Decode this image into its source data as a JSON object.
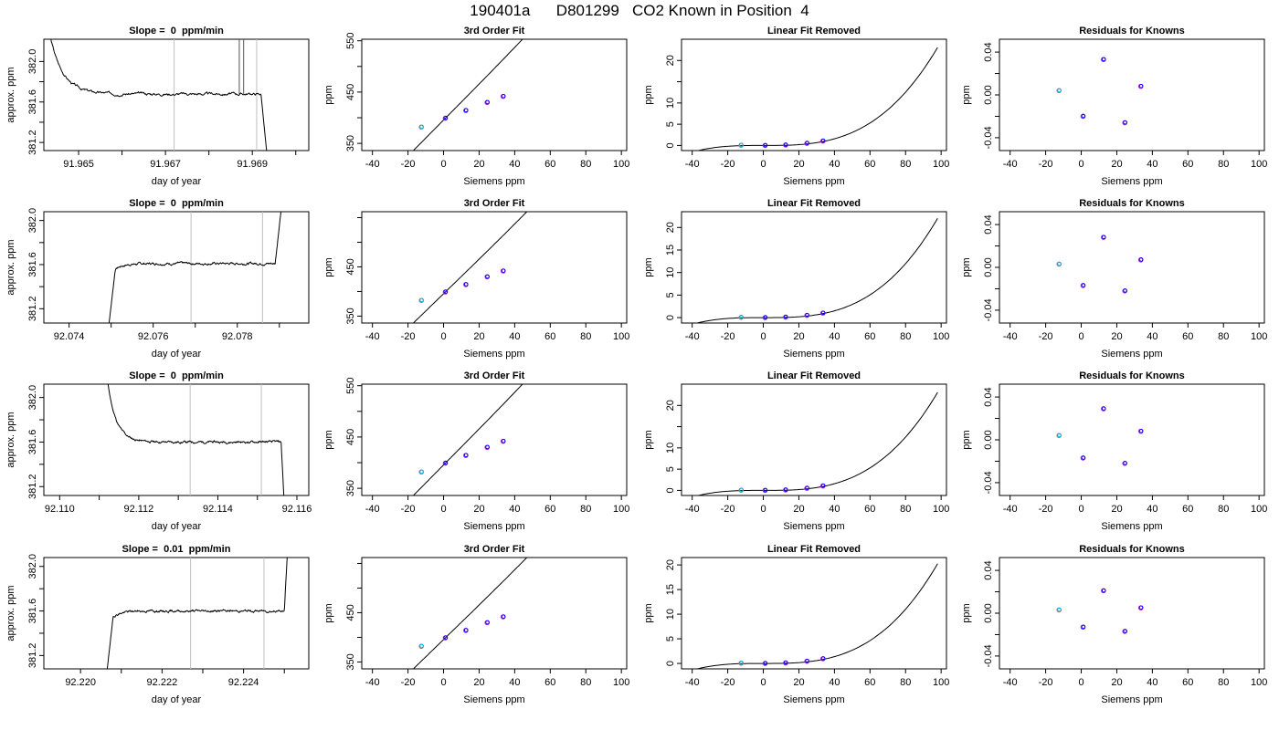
{
  "title": "190401a      D801299   CO2 Known in Position  4",
  "colors": {
    "trace": "#000000",
    "marker_line": "#bfbfbf",
    "spike": "#555555",
    "point": "#0000ff",
    "point_alt": "#a020f0",
    "point_first": "#00b0f0",
    "point_first_alt": "#888888"
  },
  "chart_data": [
    {
      "type": "line",
      "row": 0,
      "col": 0,
      "title": "Slope =  0  ppm/min",
      "xlabel": "day of year",
      "ylabel": "approx. ppm",
      "xlim": [
        91.9642,
        91.9703
      ],
      "ylim": [
        381.12,
        382.22
      ],
      "xticks": [
        91.965,
        91.967,
        91.969
      ],
      "xtick_labels": [
        "91.965",
        "91.967",
        "91.969"
      ],
      "xminor": [
        91.966,
        91.968,
        91.97
      ],
      "yticks": [
        381.2,
        381.6,
        382.0
      ],
      "ytick_labels": [
        "381.2",
        "381.6",
        "382.0"
      ],
      "yminor": [
        381.4,
        381.8
      ],
      "markers": [
        91.9672,
        91.9691
      ],
      "spikes": [
        91.9687,
        91.9688
      ],
      "trace": {
        "start": 91.9642,
        "end": 91.9694,
        "level": 381.68,
        "noise": 0.01,
        "seed": 3,
        "left": {
          "type": "decay",
          "from": 382.6,
          "t1": 91.9655,
          "tau": 0.0003
        },
        "right": {
          "type": "drop",
          "to": 380.8,
          "t1": 91.9692,
          "t2": 91.9694
        }
      }
    },
    {
      "type": "line",
      "row": 0,
      "col": 1,
      "title": "3rd Order Fit",
      "xlabel": "Siemens ppm",
      "ylabel": "ppm",
      "xlim": [
        -46,
        103
      ],
      "ylim": [
        336,
        553
      ],
      "xticks": [
        -40,
        -20,
        0,
        20,
        40,
        60,
        80,
        100
      ],
      "xtick_labels": [
        "-40",
        "-20",
        "0",
        "20",
        "40",
        "60",
        "80",
        "100"
      ],
      "yticks": [
        350,
        450,
        550
      ],
      "ytick_labels": [
        "350",
        "450",
        "550"
      ],
      "yminor": [
        400,
        500
      ],
      "curve": {
        "x0": -43,
        "x1": 98,
        "a": 395.5,
        "b": 3.5,
        "c": 0.0,
        "d": 2.5e-05
      },
      "points": {
        "x": [
          -12.5,
          1.0,
          12.5,
          24.5,
          33.5
        ],
        "y": [
          381.8,
          399.0,
          414.0,
          429.8,
          441.6
        ]
      }
    },
    {
      "type": "line",
      "row": 0,
      "col": 2,
      "title": "Linear Fit Removed",
      "xlabel": "Siemens ppm",
      "ylabel": "ppm",
      "xlim": [
        -46,
        103
      ],
      "ylim": [
        -1.2,
        25.0
      ],
      "xticks": [
        -40,
        -20,
        0,
        20,
        40,
        60,
        80,
        100
      ],
      "xtick_labels": [
        "-40",
        "-20",
        "0",
        "20",
        "40",
        "60",
        "80",
        "100"
      ],
      "yticks": [
        0,
        5,
        10,
        20
      ],
      "ytick_labels": [
        "0",
        "5",
        "10",
        "20"
      ],
      "yminor": [
        15
      ],
      "curve": {
        "x0": -43,
        "x1": 98,
        "a": 0.0,
        "b": 0.0,
        "c": 0.0,
        "d": 2.45e-05
      },
      "points": {
        "x": [
          -12.5,
          1.0,
          12.5,
          24.5,
          33.5
        ],
        "y": [
          0.05,
          0.0,
          0.1,
          0.5,
          1.05
        ]
      }
    },
    {
      "type": "scatter",
      "row": 0,
      "col": 3,
      "title": "Residuals for Knowns",
      "xlabel": "Siemens ppm",
      "ylabel": "ppm",
      "xlim": [
        -46,
        103
      ],
      "ylim": [
        -0.052,
        0.052
      ],
      "xticks": [
        -40,
        -20,
        0,
        20,
        40,
        60,
        80,
        100
      ],
      "xtick_labels": [
        "-40",
        "-20",
        "0",
        "20",
        "40",
        "60",
        "80",
        "100"
      ],
      "yticks": [
        -0.04,
        0.0,
        0.04
      ],
      "ytick_labels": [
        "-0.04",
        "0.00",
        "0.04"
      ],
      "yminor": [
        -0.02,
        0.02
      ],
      "points": {
        "x": [
          -12.5,
          1.0,
          12.5,
          24.5,
          33.5
        ],
        "y": [
          0.004,
          -0.02,
          0.033,
          -0.026,
          0.008
        ]
      }
    },
    {
      "type": "line",
      "row": 1,
      "col": 0,
      "title": "Slope =  0  ppm/min",
      "xlabel": "day of year",
      "ylabel": "approx. ppm",
      "xlim": [
        92.0734,
        92.0797
      ],
      "ylim": [
        381.07,
        382.08
      ],
      "xticks": [
        92.074,
        92.076,
        92.078
      ],
      "xtick_labels": [
        "92.074",
        "92.076",
        "92.078"
      ],
      "xminor": [
        92.075,
        92.077,
        92.079
      ],
      "yticks": [
        381.2,
        381.6,
        382.0
      ],
      "ytick_labels": [
        "381.2",
        "381.6",
        "382.0"
      ],
      "yminor": [
        381.4,
        381.8
      ],
      "markers": [
        92.0769,
        92.0786
      ],
      "spikes": [],
      "trace": {
        "start": 92.0749,
        "end": 92.0791,
        "level": 381.61,
        "noise": 0.008,
        "seed": 7,
        "left": {
          "type": "rise",
          "from": 380.9,
          "t1": 92.0751,
          "tau": 0.0002
        },
        "right": {
          "type": "jump",
          "to": 382.3,
          "t1": 92.0789,
          "t2": 92.0791
        }
      }
    },
    {
      "type": "line",
      "row": 1,
      "col": 1,
      "title": "3rd Order Fit",
      "xlabel": "Siemens ppm",
      "ylabel": "ppm",
      "xlim": [
        -46,
        103
      ],
      "ylim": [
        336,
        562
      ],
      "xticks": [
        -40,
        -20,
        0,
        20,
        40,
        60,
        80,
        100
      ],
      "xtick_labels": [
        "-40",
        "-20",
        "0",
        "20",
        "40",
        "60",
        "80",
        "100"
      ],
      "yticks": [
        350,
        450
      ],
      "ytick_labels": [
        "350",
        "450"
      ],
      "yminor": [
        400,
        500,
        550
      ],
      "curve": {
        "x0": -43,
        "x1": 98,
        "a": 395.5,
        "b": 3.5,
        "c": 0.0,
        "d": 2.4e-05
      },
      "points": {
        "x": [
          -12.5,
          1.0,
          12.5,
          24.5,
          33.5
        ],
        "y": [
          381.8,
          399.0,
          414.0,
          429.8,
          441.6
        ]
      }
    },
    {
      "type": "line",
      "row": 1,
      "col": 2,
      "title": "Linear Fit Removed",
      "xlabel": "Siemens ppm",
      "ylabel": "ppm",
      "xlim": [
        -46,
        103
      ],
      "ylim": [
        -1.2,
        23.5
      ],
      "xticks": [
        -40,
        -20,
        0,
        20,
        40,
        60,
        80,
        100
      ],
      "xtick_labels": [
        "-40",
        "-20",
        "0",
        "20",
        "40",
        "60",
        "80",
        "100"
      ],
      "yticks": [
        0,
        5,
        10,
        15,
        20
      ],
      "ytick_labels": [
        "0",
        "5",
        "10",
        "15",
        "20"
      ],
      "yminor": [],
      "curve": {
        "x0": -43,
        "x1": 98,
        "a": 0.0,
        "b": 0.0,
        "c": 0.0,
        "d": 2.34e-05
      },
      "points": {
        "x": [
          -12.5,
          1.0,
          12.5,
          24.5,
          33.5
        ],
        "y": [
          0.05,
          0.0,
          0.1,
          0.5,
          1.0
        ]
      }
    },
    {
      "type": "scatter",
      "row": 1,
      "col": 3,
      "title": "Residuals for Knowns",
      "xlabel": "Siemens ppm",
      "ylabel": "ppm",
      "xlim": [
        -46,
        103
      ],
      "ylim": [
        -0.052,
        0.052
      ],
      "xticks": [
        -40,
        -20,
        0,
        20,
        40,
        60,
        80,
        100
      ],
      "xtick_labels": [
        "-40",
        "-20",
        "0",
        "20",
        "40",
        "60",
        "80",
        "100"
      ],
      "yticks": [
        -0.04,
        0.0,
        0.04
      ],
      "ytick_labels": [
        "-0.04",
        "0.00",
        "0.04"
      ],
      "yminor": [
        -0.02,
        0.02
      ],
      "points": {
        "x": [
          -12.5,
          1.0,
          12.5,
          24.5,
          33.5
        ],
        "y": [
          0.003,
          -0.017,
          0.028,
          -0.022,
          0.007
        ]
      }
    },
    {
      "type": "line",
      "row": 2,
      "col": 0,
      "title": "Slope =  0  ppm/min",
      "xlabel": "day of year",
      "ylabel": "approx. ppm",
      "xlim": [
        92.1096,
        92.1163
      ],
      "ylim": [
        381.12,
        382.12
      ],
      "xticks": [
        92.11,
        92.112,
        92.114,
        92.116
      ],
      "xtick_labels": [
        "92.110",
        "92.112",
        "92.114",
        "92.116"
      ],
      "xminor": [
        92.111,
        92.113,
        92.115
      ],
      "yticks": [
        381.2,
        381.6,
        382.0
      ],
      "ytick_labels": [
        "381.2",
        "381.6",
        "382.0"
      ],
      "yminor": [
        381.4,
        381.8
      ],
      "markers": [
        92.1133,
        92.1151
      ],
      "spikes": [],
      "trace": {
        "start": 92.1111,
        "end": 92.1157,
        "level": 381.6,
        "noise": 0.008,
        "seed": 11,
        "left": {
          "type": "decay",
          "from": 382.5,
          "t1": 92.1114,
          "tau": 0.00022
        },
        "right": {
          "type": "drop",
          "to": 380.9,
          "t1": 92.1156,
          "t2": 92.1157
        }
      }
    },
    {
      "type": "line",
      "row": 2,
      "col": 1,
      "title": "3rd Order Fit",
      "xlabel": "Siemens ppm",
      "ylabel": "ppm",
      "xlim": [
        -46,
        103
      ],
      "ylim": [
        336,
        553
      ],
      "xticks": [
        -40,
        -20,
        0,
        20,
        40,
        60,
        80,
        100
      ],
      "xtick_labels": [
        "-40",
        "-20",
        "0",
        "20",
        "40",
        "60",
        "80",
        "100"
      ],
      "yticks": [
        350,
        450,
        550
      ],
      "ytick_labels": [
        "350",
        "450",
        "550"
      ],
      "yminor": [
        400,
        500
      ],
      "curve": {
        "x0": -43,
        "x1": 98,
        "a": 395.5,
        "b": 3.5,
        "c": 0.0,
        "d": 2.5e-05
      },
      "points": {
        "x": [
          -12.5,
          1.0,
          12.5,
          24.5,
          33.5
        ],
        "y": [
          381.8,
          399.0,
          414.0,
          429.8,
          441.6
        ]
      }
    },
    {
      "type": "line",
      "row": 2,
      "col": 2,
      "title": "Linear Fit Removed",
      "xlabel": "Siemens ppm",
      "ylabel": "ppm",
      "xlim": [
        -46,
        103
      ],
      "ylim": [
        -1.2,
        25.0
      ],
      "xticks": [
        -40,
        -20,
        0,
        20,
        40,
        60,
        80,
        100
      ],
      "xtick_labels": [
        "-40",
        "-20",
        "0",
        "20",
        "40",
        "60",
        "80",
        "100"
      ],
      "yticks": [
        0,
        5,
        10,
        20
      ],
      "ytick_labels": [
        "0",
        "5",
        "10",
        "20"
      ],
      "yminor": [
        15
      ],
      "curve": {
        "x0": -43,
        "x1": 98,
        "a": 0.0,
        "b": 0.0,
        "c": 0.0,
        "d": 2.45e-05
      },
      "points": {
        "x": [
          -12.5,
          1.0,
          12.5,
          24.5,
          33.5
        ],
        "y": [
          0.05,
          0.0,
          0.1,
          0.5,
          1.05
        ]
      }
    },
    {
      "type": "scatter",
      "row": 2,
      "col": 3,
      "title": "Residuals for Knowns",
      "xlabel": "Siemens ppm",
      "ylabel": "ppm",
      "xlim": [
        -46,
        103
      ],
      "ylim": [
        -0.052,
        0.052
      ],
      "xticks": [
        -40,
        -20,
        0,
        20,
        40,
        60,
        80,
        100
      ],
      "xtick_labels": [
        "-40",
        "-20",
        "0",
        "20",
        "40",
        "60",
        "80",
        "100"
      ],
      "yticks": [
        -0.04,
        0.0,
        0.04
      ],
      "ytick_labels": [
        "-0.04",
        "0.00",
        "0.04"
      ],
      "yminor": [
        -0.02,
        0.02
      ],
      "points": {
        "x": [
          -12.5,
          1.0,
          12.5,
          24.5,
          33.5
        ],
        "y": [
          0.004,
          -0.017,
          0.029,
          -0.022,
          0.008
        ]
      }
    },
    {
      "type": "line",
      "row": 3,
      "col": 0,
      "title": "Slope =  0.01  ppm/min",
      "xlabel": "day of year",
      "ylabel": "approx. ppm",
      "xlim": [
        92.2191,
        92.2256
      ],
      "ylim": [
        381.08,
        382.08
      ],
      "xticks": [
        92.22,
        92.222,
        92.224
      ],
      "xtick_labels": [
        "92.220",
        "92.222",
        "92.224"
      ],
      "xminor": [
        92.221,
        92.223,
        92.225
      ],
      "yticks": [
        381.2,
        381.6,
        382.0
      ],
      "ytick_labels": [
        "381.2",
        "381.6",
        "382.0"
      ],
      "yminor": [
        381.4,
        381.8
      ],
      "markers": [
        92.2227,
        92.2245
      ],
      "spikes": [],
      "trace": {
        "start": 92.2206,
        "end": 92.2251,
        "level": 381.6,
        "noise": 0.008,
        "seed": 19,
        "left": {
          "type": "rise",
          "from": 380.9,
          "t1": 92.2208,
          "tau": 0.0002
        },
        "right": {
          "type": "jump",
          "to": 382.3,
          "t1": 92.225,
          "t2": 92.2251
        }
      }
    },
    {
      "type": "line",
      "row": 3,
      "col": 1,
      "title": "3rd Order Fit",
      "xlabel": "Siemens ppm",
      "ylabel": "ppm",
      "xlim": [
        -46,
        103
      ],
      "ylim": [
        336,
        562
      ],
      "xticks": [
        -40,
        -20,
        0,
        20,
        40,
        60,
        80,
        100
      ],
      "xtick_labels": [
        "-40",
        "-20",
        "0",
        "20",
        "40",
        "60",
        "80",
        "100"
      ],
      "yticks": [
        350,
        450
      ],
      "ytick_labels": [
        "350",
        "450"
      ],
      "yminor": [
        400,
        500,
        550
      ],
      "curve": {
        "x0": -43,
        "x1": 98,
        "a": 395.5,
        "b": 3.5,
        "c": 0.0,
        "d": 2.4e-05
      },
      "points": {
        "x": [
          -12.5,
          1.0,
          12.5,
          24.5,
          33.5
        ],
        "y": [
          381.8,
          399.0,
          414.0,
          429.8,
          441.6
        ]
      }
    },
    {
      "type": "line",
      "row": 3,
      "col": 2,
      "title": "Linear Fit Removed",
      "xlabel": "Siemens ppm",
      "ylabel": "ppm",
      "xlim": [
        -46,
        103
      ],
      "ylim": [
        -1.1,
        21.5
      ],
      "xticks": [
        -40,
        -20,
        0,
        20,
        40,
        60,
        80,
        100
      ],
      "xtick_labels": [
        "-40",
        "-20",
        "0",
        "20",
        "40",
        "60",
        "80",
        "100"
      ],
      "yticks": [
        0,
        5,
        10,
        15,
        20
      ],
      "ytick_labels": [
        "0",
        "5",
        "10",
        "15",
        "20"
      ],
      "yminor": [],
      "curve": {
        "x0": -43,
        "x1": 98,
        "a": 0.0,
        "b": 0.0,
        "c": 0.0,
        "d": 2.15e-05
      },
      "points": {
        "x": [
          -12.5,
          1.0,
          12.5,
          24.5,
          33.5
        ],
        "y": [
          0.05,
          0.0,
          0.1,
          0.45,
          0.95
        ]
      }
    },
    {
      "type": "scatter",
      "row": 3,
      "col": 3,
      "title": "Residuals for Knowns",
      "xlabel": "Siemens ppm",
      "ylabel": "ppm",
      "xlim": [
        -46,
        103
      ],
      "ylim": [
        -0.052,
        0.052
      ],
      "xticks": [
        -40,
        -20,
        0,
        20,
        40,
        60,
        80,
        100
      ],
      "xtick_labels": [
        "-40",
        "-20",
        "0",
        "20",
        "40",
        "60",
        "80",
        "100"
      ],
      "yticks": [
        -0.04,
        0.0,
        0.04
      ],
      "ytick_labels": [
        "-0.04",
        "0.00",
        "0.04"
      ],
      "yminor": [
        -0.02,
        0.02
      ],
      "points": {
        "x": [
          -12.5,
          1.0,
          12.5,
          24.5,
          33.5
        ],
        "y": [
          0.003,
          -0.013,
          0.021,
          -0.017,
          0.005
        ]
      }
    }
  ]
}
